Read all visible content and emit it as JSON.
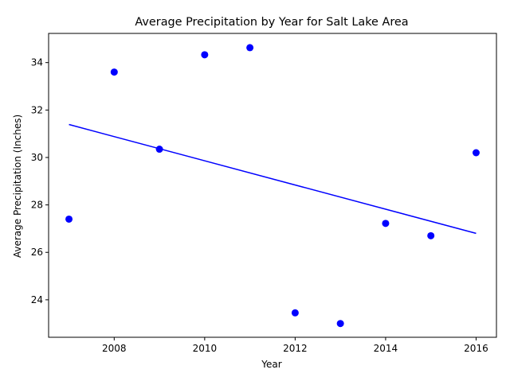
{
  "chart_data": {
    "type": "scatter",
    "title": "Average Precipitation by Year for Salt Lake Area",
    "xlabel": "Year",
    "ylabel": "Average Precipitation (Inches)",
    "xlim": [
      2006.55,
      2016.45
    ],
    "ylim": [
      22.42,
      35.23
    ],
    "x_ticks": [
      2008,
      2010,
      2012,
      2014,
      2016
    ],
    "y_ticks": [
      24,
      26,
      28,
      30,
      32,
      34
    ],
    "grid": false,
    "legend": "none",
    "series": [
      {
        "type": "scatter",
        "color": "#0000ff",
        "points": [
          {
            "x": 2007,
            "y": 27.4
          },
          {
            "x": 2008,
            "y": 33.6
          },
          {
            "x": 2009,
            "y": 30.35
          },
          {
            "x": 2010,
            "y": 34.33
          },
          {
            "x": 2011,
            "y": 34.63
          },
          {
            "x": 2012,
            "y": 23.45
          },
          {
            "x": 2013,
            "y": 23.0
          },
          {
            "x": 2014,
            "y": 27.22
          },
          {
            "x": 2015,
            "y": 26.7
          },
          {
            "x": 2016,
            "y": 30.2
          }
        ]
      },
      {
        "type": "line",
        "color": "#0000ff",
        "points": [
          {
            "x": 2007,
            "y": 31.39
          },
          {
            "x": 2016,
            "y": 26.8
          }
        ]
      }
    ]
  }
}
